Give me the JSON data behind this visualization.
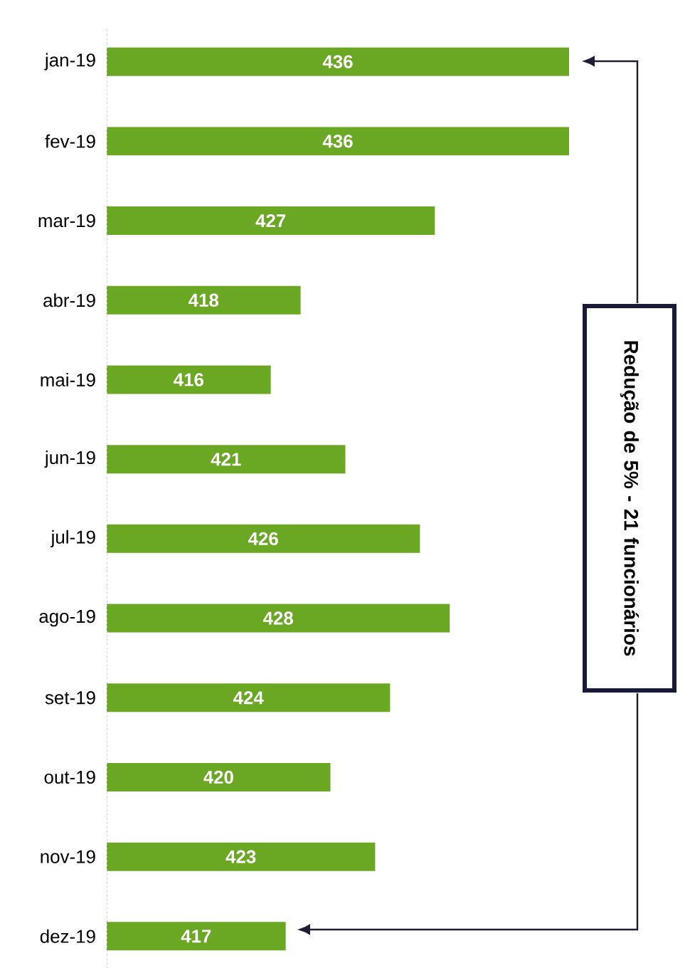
{
  "chart_data": {
    "type": "bar",
    "orientation": "horizontal",
    "categories": [
      "jan-19",
      "fev-19",
      "mar-19",
      "abr-19",
      "mai-19",
      "jun-19",
      "jul-19",
      "ago-19",
      "set-19",
      "out-19",
      "nov-19",
      "dez-19"
    ],
    "values": [
      436,
      436,
      427,
      418,
      416,
      421,
      426,
      428,
      424,
      420,
      423,
      417
    ],
    "color": "#6aa823",
    "xlim": [
      405,
      436
    ],
    "data_labels": true,
    "value_labels": [
      "436",
      "436",
      "427",
      "418",
      "416",
      "421",
      "426",
      "428",
      "424",
      "420",
      "423",
      "417"
    ],
    "tick_labels": "y",
    "annotations": [
      "Redução de 5% - 21 funcionários"
    ]
  }
}
